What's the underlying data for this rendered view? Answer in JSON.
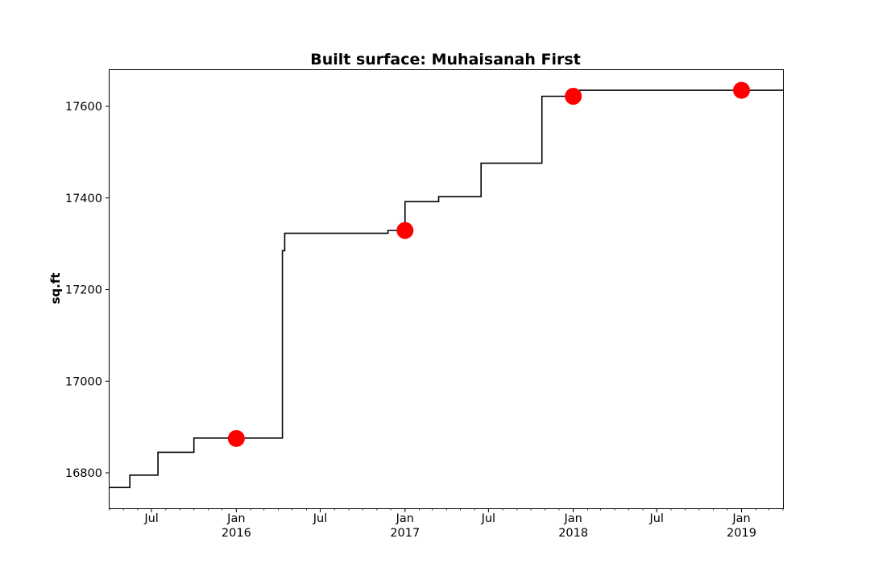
{
  "chart_data": {
    "type": "line",
    "title": "Built surface: Muhaisanah First",
    "xlabel": "",
    "ylabel": "sq.ft",
    "xlim": [
      "2015-04-01",
      "2019-04-01"
    ],
    "ylim": [
      16728,
      16680
    ],
    "y_ticks": [
      16800,
      17000,
      17200,
      17400,
      17600
    ],
    "x_ticks": [
      {
        "date": "2015-07-01",
        "label": "Jul",
        "year": ""
      },
      {
        "date": "2016-01-01",
        "label": "Jan",
        "year": "2016"
      },
      {
        "date": "2016-07-01",
        "label": "Jul",
        "year": ""
      },
      {
        "date": "2017-01-01",
        "label": "Jan",
        "year": "2017"
      },
      {
        "date": "2017-07-01",
        "label": "Jul",
        "year": ""
      },
      {
        "date": "2018-01-01",
        "label": "Jan",
        "year": "2018"
      },
      {
        "date": "2018-07-01",
        "label": "Jul",
        "year": ""
      },
      {
        "date": "2019-01-01",
        "label": "Jan",
        "year": "2019"
      }
    ],
    "series": [
      {
        "style": "step",
        "color": "#000000",
        "points": [
          {
            "x": "2015-04-01",
            "y": 16768
          },
          {
            "x": "2015-05-15",
            "y": 16795
          },
          {
            "x": "2015-07-15",
            "y": 16845
          },
          {
            "x": "2015-10-01",
            "y": 16876
          },
          {
            "x": "2016-04-10",
            "y": 17285
          },
          {
            "x": "2016-04-15",
            "y": 17323
          },
          {
            "x": "2016-11-25",
            "y": 17329
          },
          {
            "x": "2017-01-01",
            "y": 17392
          },
          {
            "x": "2017-03-15",
            "y": 17403
          },
          {
            "x": "2017-06-15",
            "y": 17476
          },
          {
            "x": "2017-10-25",
            "y": 17622
          },
          {
            "x": "2018-01-15",
            "y": 17635
          },
          {
            "x": "2019-04-01",
            "y": 17635
          }
        ]
      },
      {
        "style": "markers",
        "color": "#ff0000",
        "points": [
          {
            "x": "2016-01-01",
            "y": 16875
          },
          {
            "x": "2017-01-01",
            "y": 17329
          },
          {
            "x": "2018-01-01",
            "y": 17622
          },
          {
            "x": "2019-01-01",
            "y": 17635
          }
        ]
      }
    ]
  }
}
